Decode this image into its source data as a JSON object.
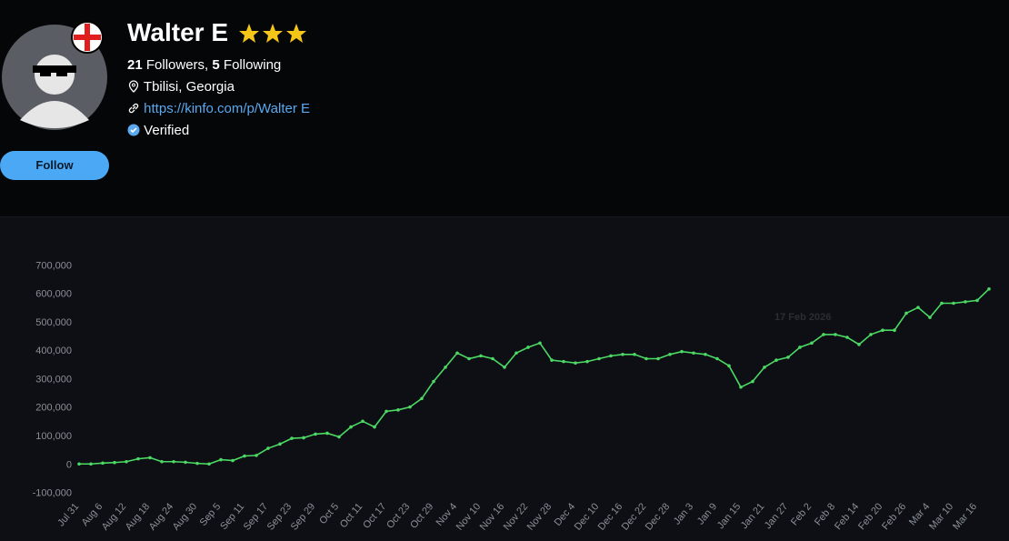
{
  "profile": {
    "name": "Walter E",
    "followers_count": "21",
    "followers_label": "Followers,",
    "following_count": "5",
    "following_label": "Following",
    "location": "Tbilisi, Georgia",
    "link": "https://kinfo.com/p/Walter E",
    "verified": "Verified",
    "follow_button": "Follow"
  },
  "chart_data": {
    "type": "line",
    "tooltip_title": "17 Feb 2026",
    "categories": [
      "Jul 31",
      null,
      "Aug 6",
      null,
      "Aug 12",
      null,
      "Aug 18",
      null,
      "Aug 24",
      null,
      "Aug 30",
      null,
      "Sep 5",
      null,
      "Sep 11",
      null,
      "Sep 17",
      null,
      "Sep 23",
      null,
      "Sep 29",
      null,
      "Oct 5",
      null,
      "Oct 11",
      null,
      "Oct 17",
      null,
      "Oct 23",
      null,
      "Oct 29",
      null,
      "Nov 4",
      null,
      "Nov 10",
      null,
      "Nov 16",
      null,
      "Nov 22",
      null,
      "Nov 28",
      null,
      "Dec 4",
      null,
      "Dec 10",
      null,
      "Dec 16",
      null,
      "Dec 22",
      null,
      "Dec 28",
      null,
      "Jan 3",
      null,
      "Jan 9",
      null,
      "Jan 15",
      null,
      "Jan 21",
      null,
      "Jan 27",
      null,
      "Feb 2",
      null,
      "Feb 8",
      null,
      "Feb 14",
      null,
      "Feb 20",
      null,
      "Feb 26",
      null,
      "Mar 4",
      null,
      "Mar 10",
      null,
      "Mar 16",
      null
    ],
    "series": [
      {
        "color": "#4cd964",
        "values": [
          0,
          0,
          3000,
          5000,
          8000,
          18000,
          22000,
          8000,
          8000,
          6000,
          2000,
          0,
          15000,
          12000,
          28000,
          30000,
          55000,
          70000,
          90000,
          92000,
          105000,
          108000,
          95000,
          130000,
          150000,
          130000,
          185000,
          190000,
          200000,
          230000,
          290000,
          340000,
          390000,
          370000,
          380000,
          370000,
          340000,
          390000,
          410000,
          425000,
          365000,
          360000,
          355000,
          360000,
          370000,
          380000,
          385000,
          385000,
          370000,
          370000,
          385000,
          395000,
          390000,
          385000,
          370000,
          345000,
          270000,
          290000,
          340000,
          365000,
          375000,
          410000,
          425000,
          455000,
          455000,
          445000,
          420000,
          455000,
          470000,
          470000,
          530000,
          550000,
          515000,
          565000,
          565000,
          570000,
          575000,
          615000
        ]
      }
    ],
    "ylim": [
      -130000,
      720000
    ],
    "yticks": [
      {
        "value": -100000,
        "label": "-100,000"
      },
      0,
      {
        "value": 100000,
        "label": "100,000"
      },
      {
        "value": 200000,
        "label": "200,000"
      },
      {
        "value": 300000,
        "label": "300,000"
      },
      {
        "value": 400000,
        "label": "400,000"
      },
      {
        "value": 500000,
        "label": "500,000"
      },
      {
        "value": 600000,
        "label": "600,000"
      },
      {
        "value": 700000,
        "label": "700,000"
      }
    ]
  }
}
